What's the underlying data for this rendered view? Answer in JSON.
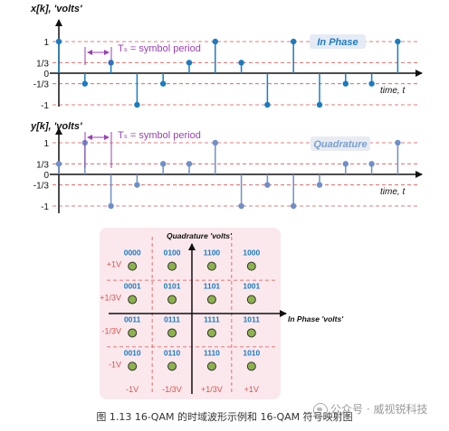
{
  "colors": {
    "inphase": "#1a7cc1",
    "quadrature": "#6f8fc9",
    "ref_line": "#d9534f",
    "axis": "#111111",
    "ts_label": "#9b3fb6",
    "constellation_bg": "#fbe8ec",
    "point_fill": "#8cb34a",
    "code_text": "#1a7cc1",
    "axis_value_text": "#d9534f"
  },
  "inphase_plot": {
    "ylabel": "x[k], 'volts'",
    "legend": "In Phase",
    "ts_label": "Tₛ = symbol period",
    "time_label": "time, t",
    "ticks": [
      "1",
      "1/3",
      "0",
      "-1/3",
      "-1"
    ],
    "values": [
      1,
      -0.3333,
      0.3333,
      -1,
      -0.3333,
      0.3333,
      1,
      0.3333,
      -1,
      1,
      -1,
      -0.3333,
      -0.3333,
      1
    ]
  },
  "quadrature_plot": {
    "ylabel": "y[k], 'volts'",
    "legend": "Quadrature",
    "ts_label": "Tₛ = symbol period",
    "time_label": "time, t",
    "ticks": [
      "1",
      "1/3",
      "0",
      "-1/3",
      "-1"
    ],
    "values": [
      0.3333,
      1,
      -1,
      -0.3333,
      0.3333,
      0.3333,
      1,
      -1,
      -0.3333,
      -1,
      -0.3333,
      0.3333,
      0.3333,
      1
    ]
  },
  "constellation": {
    "y_axis_label": "Quadrature 'volts'",
    "x_axis_label": "In Phase 'volts'",
    "row_labels": [
      "+1V",
      "+1/3V",
      "-1/3V",
      "-1V"
    ],
    "col_labels": [
      "-1V",
      "-1/3V",
      "+1/3V",
      "+1V"
    ],
    "codes": [
      [
        "0000",
        "0100",
        "1100",
        "1000"
      ],
      [
        "0001",
        "0101",
        "1101",
        "1001"
      ],
      [
        "0011",
        "0111",
        "1111",
        "1011"
      ],
      [
        "0010",
        "0110",
        "1110",
        "1010"
      ]
    ]
  },
  "caption": "图 1.13 16-QAM 的时域波形示例和 16-QAM 符号映射图",
  "watermark": "公众号 · 威视锐科技"
}
